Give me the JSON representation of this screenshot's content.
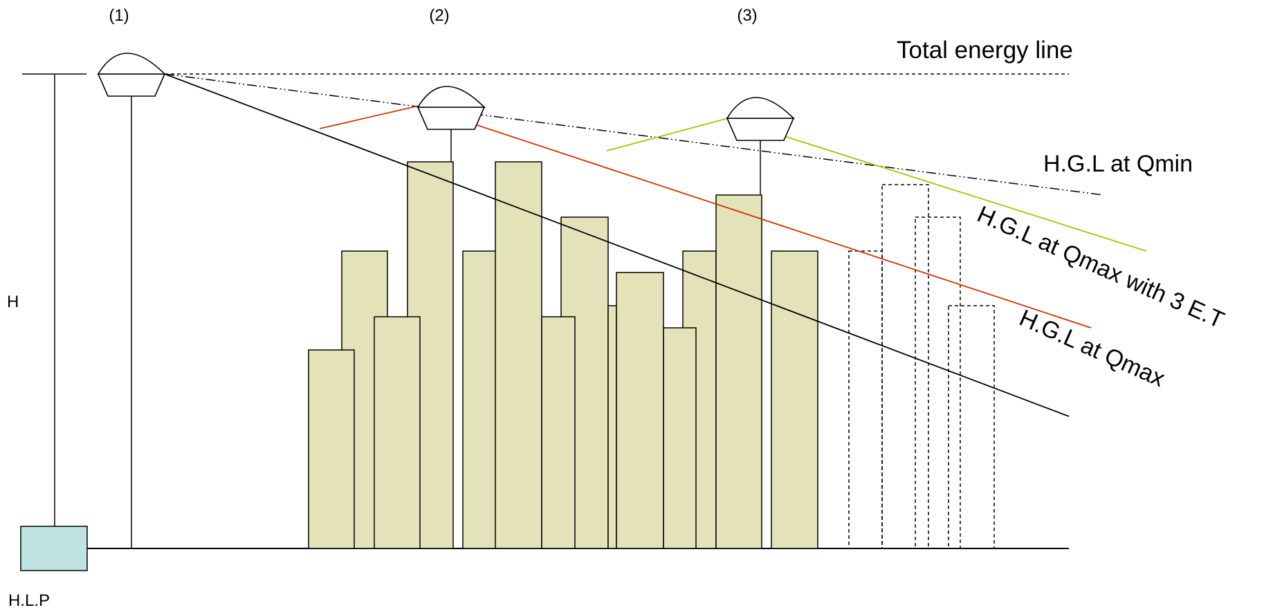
{
  "labels": {
    "tank_1": "(1)",
    "tank_2": "(2)",
    "tank_3": "(3)",
    "total_energy_line": "Total energy line",
    "hgl_qmin": "H.G.L at Qmin",
    "hgl_qmax_3et": "H.G.L at Qmax with 3 E.T",
    "hgl_qmax": "H.G.L at Qmax",
    "head": "H",
    "pump_station": "H.L.P"
  },
  "colors": {
    "building_fill": "#e4e2b9",
    "pump_fill": "#bfe2e3",
    "hgl_qmax_line": "#cc3300",
    "hgl_3et_line": "#99cc00",
    "line": "#000000"
  }
}
